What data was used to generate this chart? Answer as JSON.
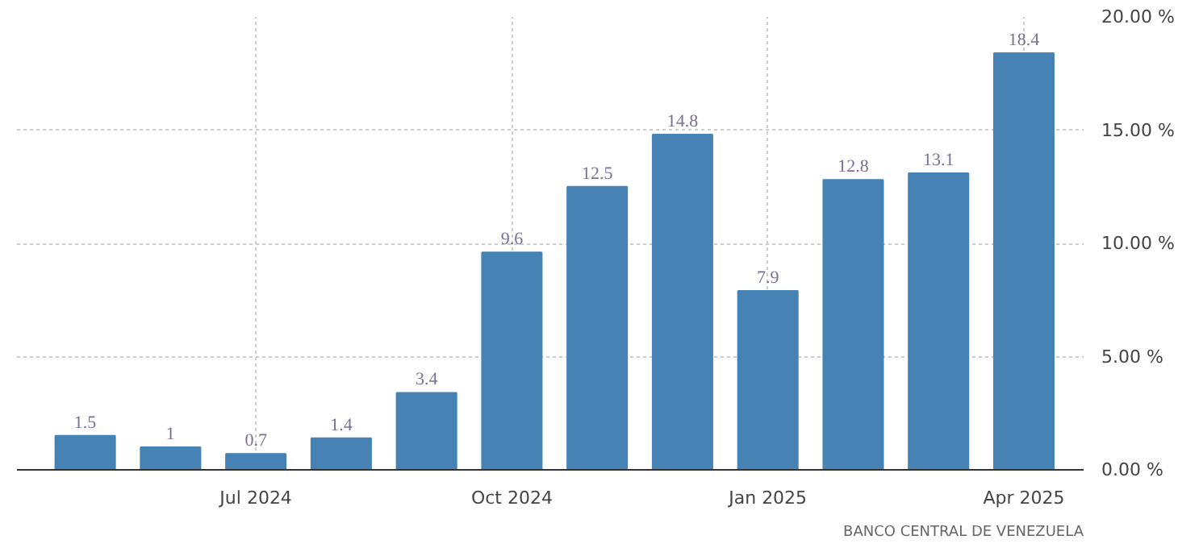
{
  "chart_data": {
    "type": "bar",
    "categories": [
      null,
      null,
      "Jul 2024",
      null,
      null,
      "Oct 2024",
      null,
      null,
      "Jan 2025",
      null,
      null,
      "Apr 2025"
    ],
    "values": [
      1.5,
      1,
      0.7,
      1.4,
      3.4,
      9.6,
      12.5,
      14.8,
      7.9,
      12.8,
      13.1,
      18.4
    ],
    "color": "#4682b4",
    "ylim": [
      0,
      20
    ],
    "yticks": [
      {
        "value": 0,
        "label": "0.00 %"
      },
      {
        "value": 5,
        "label": "5.00 %"
      },
      {
        "value": 10,
        "label": "10.00 %"
      },
      {
        "value": 15,
        "label": "15.00 %"
      },
      {
        "value": 20,
        "label": "20.00 %"
      }
    ],
    "grid": true,
    "data_labels": true,
    "annotations": [
      "BANCO CENTRAL DE VENEZUELA"
    ]
  }
}
